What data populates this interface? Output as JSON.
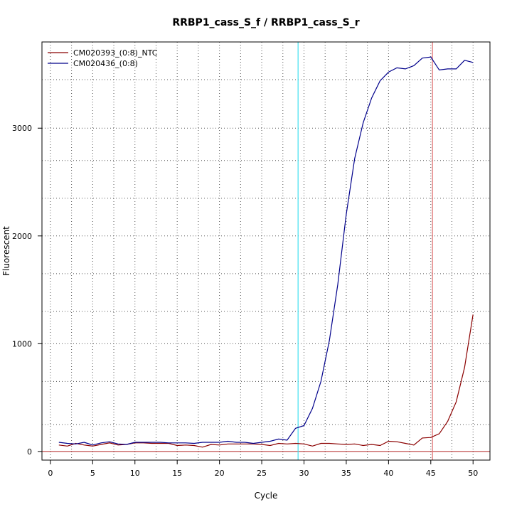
{
  "chart_data": {
    "type": "line",
    "title": "RRBP1_cass_S_f / RRBP1_cass_S_r",
    "xlabel": "Cycle",
    "ylabel": "Fluorescent",
    "xlim": [
      -1,
      52
    ],
    "ylim": [
      -80,
      3800
    ],
    "x_ticks": [
      0,
      5,
      10,
      15,
      20,
      25,
      30,
      35,
      40,
      45,
      50
    ],
    "y_ticks": [
      0,
      1000,
      2000,
      3000
    ],
    "x_grid": [
      0,
      2.5,
      5,
      7.5,
      10,
      12.5,
      15,
      17.5,
      20,
      22.5,
      25,
      27.5,
      30,
      32.5,
      35,
      37.5,
      40,
      42.5,
      45,
      47.5,
      50
    ],
    "y_grid": [
      250,
      650,
      1000,
      1300,
      1650,
      2000,
      2350,
      2700,
      3000,
      3450
    ],
    "grid": true,
    "legend_position": "top-left",
    "threshold_line": {
      "axis": "y",
      "value": 0,
      "color": "#b22222"
    },
    "marker_lines": [
      {
        "axis": "x",
        "value": 29.3,
        "color": "#40e0f0"
      },
      {
        "axis": "x",
        "value": 45.2,
        "color": "#e07070"
      }
    ],
    "x": [
      1,
      2,
      3,
      4,
      5,
      6,
      7,
      8,
      9,
      10,
      11,
      12,
      13,
      14,
      15,
      16,
      17,
      18,
      19,
      20,
      21,
      22,
      23,
      24,
      25,
      26,
      27,
      28,
      29,
      30,
      31,
      32,
      33,
      34,
      35,
      36,
      37,
      38,
      39,
      40,
      41,
      42,
      43,
      44,
      45,
      46,
      47,
      48,
      49,
      50
    ],
    "series": [
      {
        "name": "CM020393_(0:8)_NTC",
        "color": "#8b0000",
        "values": [
          60,
          50,
          75,
          60,
          50,
          65,
          80,
          60,
          65,
          80,
          80,
          75,
          75,
          75,
          55,
          60,
          55,
          40,
          65,
          60,
          70,
          70,
          70,
          70,
          65,
          55,
          75,
          70,
          75,
          70,
          50,
          75,
          75,
          70,
          65,
          70,
          55,
          65,
          55,
          95,
          90,
          75,
          60,
          125,
          130,
          165,
          280,
          460,
          780,
          1270
        ]
      },
      {
        "name": "CM020436_(0:8)",
        "color": "#00008b",
        "values": [
          85,
          75,
          70,
          85,
          60,
          80,
          90,
          70,
          65,
          85,
          85,
          85,
          85,
          80,
          80,
          80,
          75,
          85,
          85,
          85,
          95,
          85,
          85,
          75,
          85,
          95,
          115,
          105,
          215,
          240,
          400,
          650,
          1030,
          1550,
          2200,
          2720,
          3050,
          3280,
          3440,
          3520,
          3560,
          3550,
          3580,
          3650,
          3660,
          3540,
          3550,
          3550,
          3630,
          3610
        ]
      }
    ]
  }
}
